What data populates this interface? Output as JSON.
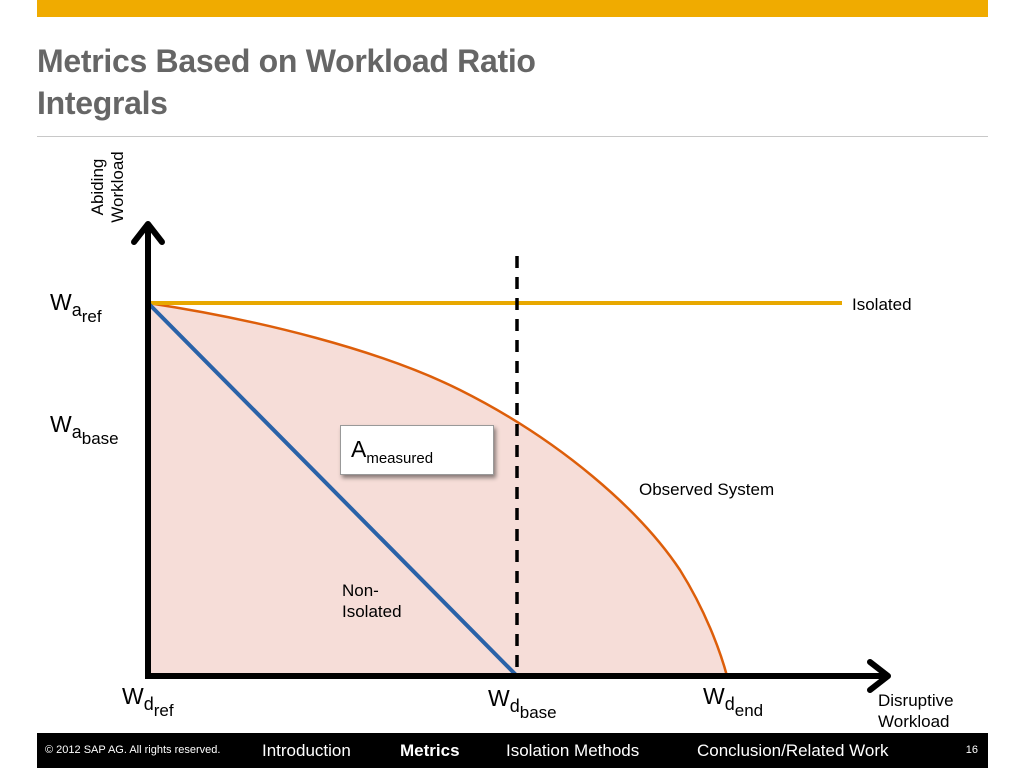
{
  "title_line1": "Metrics Based on Workload Ratio",
  "title_line2": "Integrals",
  "y_axis_label_line1": "Abiding",
  "y_axis_label_line2": "Workload",
  "x_axis_label_line1": "Disruptive",
  "x_axis_label_line2": "Workload",
  "labels": {
    "wa_ref": {
      "main": "W",
      "sub1": "a",
      "sub2": "ref"
    },
    "wa_base": {
      "main": "W",
      "sub1": "a",
      "sub2": "base"
    },
    "wd_ref": {
      "main": "W",
      "sub1": "d",
      "sub2": "ref"
    },
    "wd_base": {
      "main": "W",
      "sub1": "d",
      "sub2": "base"
    },
    "wd_end": {
      "main": "W",
      "sub1": "d",
      "sub2": "end"
    },
    "isolated": "Isolated",
    "observed": "Observed System",
    "non_isolated_line1": "Non-",
    "non_isolated_line2": "Isolated",
    "a_measured_main": "A",
    "a_measured_sub": "measured"
  },
  "colors": {
    "isolated_line": "#e8a800",
    "observed_curve": "#dd5e0a",
    "non_isolated_line": "#2a62a8",
    "area_fill": "#f6ddd8",
    "top_bar": "#f0ab00"
  },
  "footer": {
    "copyright": "© 2012 SAP AG. All rights reserved.",
    "nav": [
      "Introduction",
      "Metrics",
      "Isolation Methods",
      "Conclusion/Related Work"
    ],
    "active_nav": "Metrics",
    "page_number": "16"
  }
}
